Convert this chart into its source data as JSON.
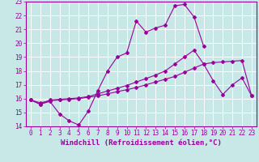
{
  "background_color": "#c8e8e8",
  "grid_color": "#b0d0d0",
  "line_color": "#990099",
  "xlabel": "Windchill (Refroidissement éolien,°C)",
  "xlabel_fontsize": 6.5,
  "tick_fontsize": 5.5,
  "xlim": [
    -0.5,
    23.5
  ],
  "ylim": [
    14,
    23
  ],
  "xticks": [
    0,
    1,
    2,
    3,
    4,
    5,
    6,
    7,
    8,
    9,
    10,
    11,
    12,
    13,
    14,
    15,
    16,
    17,
    18,
    19,
    20,
    21,
    22,
    23
  ],
  "yticks": [
    14,
    15,
    16,
    17,
    18,
    19,
    20,
    21,
    22,
    23
  ],
  "series1_x": [
    0,
    1,
    2,
    3,
    4,
    5,
    6,
    7,
    8,
    9,
    10,
    11,
    12,
    13,
    14,
    15,
    16,
    17,
    18
  ],
  "series1_y": [
    15.9,
    15.6,
    15.8,
    14.9,
    14.4,
    14.1,
    15.1,
    16.6,
    18.0,
    19.0,
    19.3,
    21.6,
    20.8,
    21.1,
    21.3,
    22.7,
    22.8,
    21.9,
    19.8
  ],
  "series2_x": [
    0,
    1,
    2,
    3,
    4,
    5,
    6,
    7,
    8,
    9,
    10,
    11,
    12,
    13,
    14,
    15,
    16,
    17,
    18,
    19,
    20,
    21,
    22,
    23
  ],
  "series2_y": [
    15.9,
    15.7,
    15.85,
    15.9,
    15.95,
    16.0,
    16.1,
    16.2,
    16.35,
    16.5,
    16.65,
    16.8,
    17.0,
    17.2,
    17.4,
    17.6,
    17.9,
    18.2,
    18.5,
    18.6,
    18.65,
    18.7,
    18.75,
    16.2
  ],
  "series3_x": [
    0,
    1,
    2,
    3,
    4,
    5,
    6,
    7,
    8,
    9,
    10,
    11,
    12,
    13,
    14,
    15,
    16,
    17,
    18,
    19,
    20,
    21,
    22,
    23
  ],
  "series3_y": [
    15.9,
    15.6,
    15.9,
    15.95,
    16.0,
    16.05,
    16.15,
    16.35,
    16.55,
    16.75,
    16.95,
    17.2,
    17.45,
    17.7,
    18.0,
    18.5,
    19.0,
    19.5,
    18.5,
    17.3,
    16.3,
    17.0,
    17.5,
    16.2
  ]
}
